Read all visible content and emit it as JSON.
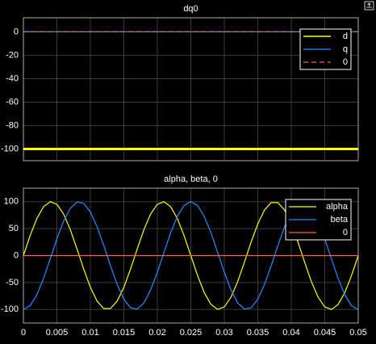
{
  "chart_data": [
    {
      "type": "line",
      "title": "dq0",
      "x": [
        0,
        0.05
      ],
      "xlim": [
        0,
        0.05
      ],
      "ylim": [
        -110,
        12
      ],
      "yticks": [
        0,
        -20,
        -40,
        -60,
        -80,
        -100
      ],
      "grid": true,
      "legend": "upper right",
      "series": [
        {
          "name": "d",
          "color": "#ffff00",
          "linewidth": 3,
          "values": [
            -100,
            -100
          ]
        },
        {
          "name": "q",
          "color": "#1e90ff",
          "values": [
            0,
            0
          ]
        },
        {
          "name": "0",
          "color": "#ff6347",
          "style": "dashed",
          "values": [
            0,
            0
          ]
        }
      ]
    },
    {
      "type": "line",
      "title": "alpha, beta, 0",
      "x": [
        0,
        0.001,
        0.002,
        0.003,
        0.004,
        0.005,
        0.006,
        0.007,
        0.008,
        0.009,
        0.01,
        0.011,
        0.012,
        0.013,
        0.014,
        0.015,
        0.016,
        0.017,
        0.018,
        0.019,
        0.02,
        0.021,
        0.022,
        0.023,
        0.024,
        0.025,
        0.026,
        0.027,
        0.028,
        0.029,
        0.03,
        0.031,
        0.032,
        0.033,
        0.034,
        0.035,
        0.036,
        0.037,
        0.038,
        0.039,
        0.04,
        0.041,
        0.042,
        0.043,
        0.044,
        0.045,
        0.046,
        0.047,
        0.048,
        0.049,
        0.05
      ],
      "xlim": [
        0,
        0.05
      ],
      "xticks": [
        0,
        0.005,
        0.01,
        0.015,
        0.02,
        0.025,
        0.03,
        0.035,
        0.04,
        0.045,
        0.05
      ],
      "ylim": [
        -125,
        125
      ],
      "yticks": [
        100,
        50,
        0,
        -50,
        -100
      ],
      "grid": true,
      "legend": "upper right",
      "series": [
        {
          "name": "alpha",
          "color": "#ffff00",
          "values": [
            0,
            36.8,
            68.5,
            90.5,
            99.8,
            95.1,
            77.1,
            48.2,
            12.5,
            -24.9,
            -58.8,
            -84.4,
            -98.2,
            -98.2,
            -84.4,
            -58.8,
            -24.9,
            12.5,
            48.2,
            77.1,
            95.1,
            99.8,
            90.5,
            68.5,
            36.8,
            0,
            -36.8,
            -68.5,
            -90.5,
            -99.8,
            -95.1,
            -77.1,
            -48.2,
            -12.5,
            24.9,
            58.8,
            84.4,
            98.2,
            98.2,
            84.4,
            58.8,
            24.9,
            -12.5,
            -48.2,
            -77.1,
            -95.1,
            -99.8,
            -90.5,
            -68.5,
            -36.8,
            0
          ]
        },
        {
          "name": "beta",
          "color": "#1e90ff",
          "values": [
            -100,
            -93,
            -72.9,
            -42.6,
            -6.3,
            30.9,
            63.7,
            87.6,
            99.2,
            96.9,
            80.9,
            53.6,
            18.7,
            -18.7,
            -53.6,
            -80.9,
            -96.9,
            -99.2,
            -87.6,
            -63.7,
            -30.9,
            6.3,
            42.6,
            72.9,
            93,
            100,
            93,
            72.9,
            42.6,
            6.3,
            -30.9,
            -63.7,
            -87.6,
            -99.2,
            -96.9,
            -80.9,
            -53.6,
            -18.7,
            18.7,
            53.6,
            80.9,
            96.9,
            99.2,
            87.6,
            63.7,
            30.9,
            -6.3,
            -42.6,
            -72.9,
            -93,
            -100
          ]
        },
        {
          "name": "0",
          "color": "#ff6347",
          "values": [
            0,
            0,
            0,
            0,
            0,
            0,
            0,
            0,
            0,
            0,
            0,
            0,
            0,
            0,
            0,
            0,
            0,
            0,
            0,
            0,
            0,
            0,
            0,
            0,
            0,
            0,
            0,
            0,
            0,
            0,
            0,
            0,
            0,
            0,
            0,
            0,
            0,
            0,
            0,
            0,
            0,
            0,
            0,
            0,
            0,
            0,
            0,
            0,
            0,
            0,
            0
          ]
        }
      ]
    }
  ]
}
